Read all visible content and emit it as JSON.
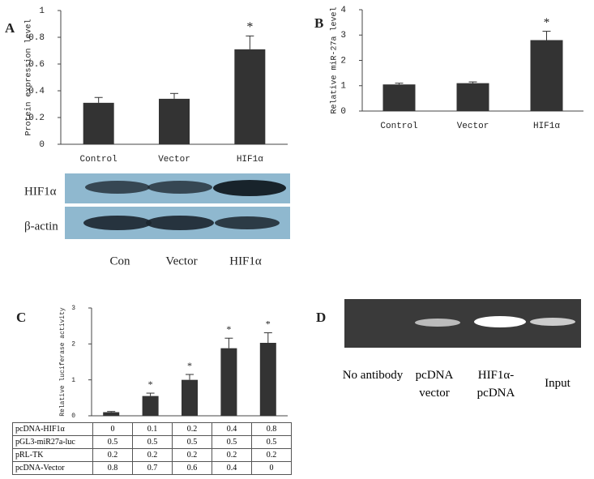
{
  "panel_labels": [
    "A",
    "B",
    "C",
    "D"
  ],
  "chart_data": [
    {
      "type": "bar",
      "ylabel": "Protein expression level",
      "categories": [
        "Control",
        "Vector",
        "HIF1α"
      ],
      "values": [
        0.31,
        0.34,
        0.71
      ],
      "errors": [
        0.04,
        0.04,
        0.1
      ],
      "annotations": [
        null,
        null,
        "*"
      ],
      "color": "#333333",
      "ylim": [
        0,
        1
      ],
      "yticks": [
        0,
        0.2,
        0.4,
        0.6,
        0.8,
        1
      ]
    },
    {
      "type": "bar",
      "ylabel": "Relative miR-27a level",
      "categories": [
        "Control",
        "Vector",
        "HIF1α"
      ],
      "values": [
        1.05,
        1.1,
        2.8
      ],
      "errors": [
        0.05,
        0.05,
        0.35
      ],
      "annotations": [
        null,
        null,
        "*"
      ],
      "color": "#333333",
      "ylim": [
        0,
        4
      ],
      "yticks": [
        0,
        1,
        2,
        3,
        4
      ]
    },
    {
      "type": "bar",
      "ylabel": "Relative luciferase activity",
      "categories": [
        null,
        null,
        null,
        null,
        null
      ],
      "values": [
        0.1,
        0.55,
        1.0,
        1.88,
        2.03
      ],
      "errors": [
        0.02,
        0.08,
        0.15,
        0.28,
        0.28
      ],
      "annotations": [
        null,
        "*",
        "*",
        "*",
        "*"
      ],
      "color": "#333333",
      "ylim": [
        0,
        3
      ],
      "yticks": [
        0,
        1,
        2,
        3
      ]
    }
  ],
  "blot": {
    "rows": [
      "HIF1α",
      "β-actin"
    ],
    "lanes": [
      "Con",
      "Vector",
      "HIF1α"
    ]
  },
  "table": {
    "rows": [
      [
        "pcDNA-HIF1α",
        0,
        0.1,
        0.2,
        0.4,
        0.8
      ],
      [
        "pGL3-miR27a-luc",
        0.5,
        0.5,
        0.5,
        0.5,
        0.5
      ],
      [
        "pRL-TK",
        0.2,
        0.2,
        0.2,
        0.2,
        0.2
      ],
      [
        "pcDNA-Vector",
        0.8,
        0.7,
        0.6,
        0.4,
        0
      ]
    ]
  },
  "gel": {
    "lanes": [
      "No antibody",
      "pcDNA vector",
      "HIF1α-pcDNA",
      "Input"
    ]
  }
}
